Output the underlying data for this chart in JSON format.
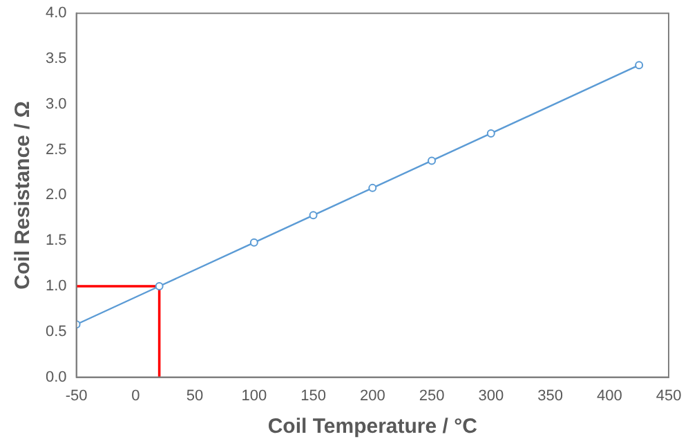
{
  "chart_data": {
    "type": "line",
    "xlabel": "Coil Temperature / °C",
    "ylabel": "Coil Resistance / Ω",
    "series": [
      {
        "color": "#5b9bd5",
        "marker": "circle",
        "x": [
          -50,
          20,
          100,
          150,
          200,
          250,
          300,
          425
        ],
        "values": [
          0.58,
          1.0,
          1.48,
          1.78,
          2.08,
          2.38,
          2.68,
          3.43
        ]
      },
      {
        "color": "#ff0000",
        "marker": "none",
        "x": [
          -50,
          20,
          20
        ],
        "values": [
          1.0,
          1.0,
          0
        ]
      }
    ],
    "xlim": [
      -50,
      450
    ],
    "xticks": [
      -50,
      0,
      50,
      100,
      150,
      200,
      250,
      300,
      350,
      400,
      450
    ],
    "ylim": [
      0,
      4
    ],
    "yticks": [
      {
        "value": 0,
        "label": "0.0"
      },
      {
        "value": 0.5,
        "label": "0.5"
      },
      {
        "value": 1,
        "label": "1.0"
      },
      {
        "value": 1.5,
        "label": "1.5"
      },
      {
        "value": 2,
        "label": "2.0"
      },
      {
        "value": 2.5,
        "label": "2.5"
      },
      {
        "value": 3,
        "label": "3.0"
      },
      {
        "value": 3.5,
        "label": "3.5"
      },
      {
        "value": 4,
        "label": "4.0"
      }
    ],
    "grid": false,
    "legend": false
  }
}
